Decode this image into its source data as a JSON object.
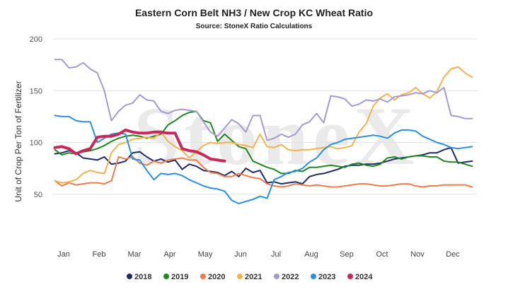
{
  "chart_data": {
    "type": "line",
    "title": "Eastern Corn Belt NH3 / New Crop KC Wheat Ratio",
    "subtitle": "Source: StoneX Ratio Calculations",
    "ylabel": "Unit of Crop Per Ton of Fertilizer",
    "xlabel": "",
    "watermark": "StoneX",
    "x_unit": "month",
    "x_range": [
      0,
      12
    ],
    "ylim": [
      0,
      200
    ],
    "y_ticks": [
      50,
      100,
      150,
      200
    ],
    "x_ticks": [
      {
        "label": "Jan",
        "x": 0.3
      },
      {
        "label": "Feb",
        "x": 1.3
      },
      {
        "label": "Mar",
        "x": 2.3
      },
      {
        "label": "Apr",
        "x": 3.3
      },
      {
        "label": "May",
        "x": 4.3
      },
      {
        "label": "Jun",
        "x": 5.3
      },
      {
        "label": "Jul",
        "x": 6.3
      },
      {
        "label": "Aug",
        "x": 7.3
      },
      {
        "label": "Sep",
        "x": 8.3
      },
      {
        "label": "Oct",
        "x": 9.3
      },
      {
        "label": "Nov",
        "x": 10.3
      },
      {
        "label": "Dec",
        "x": 11.3
      }
    ],
    "grid": "horizontal",
    "legend_position": "bottom",
    "series": [
      {
        "name": "2018",
        "color": "#1f2a6b",
        "width": 2,
        "x": [
          0.05,
          0.25,
          0.45,
          0.65,
          0.85,
          1.05,
          1.25,
          1.45,
          1.65,
          1.85,
          2.05,
          2.25,
          2.45,
          2.65,
          2.85,
          3.05,
          3.25,
          3.45,
          3.65,
          3.85,
          4.05,
          4.25,
          4.45,
          4.65,
          4.85,
          5.05,
          5.25,
          5.45,
          5.65,
          5.85,
          6.05,
          6.25,
          6.45,
          6.65,
          6.85,
          7.05,
          7.25,
          7.45,
          7.65,
          7.85,
          8.05,
          8.25,
          8.45,
          8.65,
          8.85,
          9.05,
          9.25,
          9.45,
          9.65,
          9.85,
          10.05,
          10.25,
          10.45,
          10.65,
          10.85,
          11.05,
          11.25,
          11.45,
          11.65,
          11.85
        ],
        "y": [
          89,
          90,
          92,
          90,
          85,
          84,
          83,
          86,
          79,
          80,
          82,
          90,
          91,
          86,
          82,
          84,
          81,
          83,
          74,
          79,
          77,
          73,
          72,
          71,
          68,
          72,
          67,
          75,
          71,
          73,
          61,
          62,
          60,
          61,
          62,
          60,
          67,
          69,
          70,
          72,
          74,
          77,
          78,
          78,
          79,
          79,
          80,
          82,
          84,
          85,
          86,
          87,
          88,
          90,
          90,
          93,
          95,
          80,
          81,
          82
        ]
      },
      {
        "name": "2019",
        "color": "#1e8a1e",
        "width": 2,
        "x": [
          0.05,
          0.25,
          0.45,
          0.65,
          0.85,
          1.05,
          1.25,
          1.45,
          1.65,
          1.85,
          2.05,
          2.25,
          2.45,
          2.65,
          2.85,
          3.05,
          3.25,
          3.45,
          3.65,
          3.85,
          4.05,
          4.25,
          4.45,
          4.65,
          4.85,
          5.05,
          5.25,
          5.45,
          5.65,
          5.85,
          6.05,
          6.25,
          6.45,
          6.65,
          6.85,
          7.05,
          7.25,
          7.45,
          7.65,
          7.85,
          8.05,
          8.25,
          8.45,
          8.65,
          8.85,
          9.05,
          9.25,
          9.45,
          9.65,
          9.85,
          10.05,
          10.25,
          10.45,
          10.65,
          10.85,
          11.05,
          11.25,
          11.45,
          11.65,
          11.85
        ],
        "y": [
          93,
          88,
          90,
          89,
          91,
          92,
          94,
          97,
          101,
          104,
          106,
          107,
          106,
          104,
          106,
          108,
          117,
          121,
          126,
          129,
          130,
          121,
          119,
          101,
          108,
          102,
          96,
          94,
          82,
          79,
          76,
          74,
          70,
          70,
          73,
          72,
          76,
          76,
          77,
          78,
          77,
          76,
          79,
          80,
          78,
          77,
          79,
          85,
          86,
          84,
          86,
          87,
          87,
          86,
          86,
          82,
          81,
          81,
          79,
          77
        ]
      },
      {
        "name": "2020",
        "color": "#f07c4a",
        "width": 2,
        "x": [
          0.05,
          0.25,
          0.45,
          0.65,
          0.85,
          1.05,
          1.25,
          1.45,
          1.65,
          1.85,
          2.05,
          2.25,
          2.45,
          2.65,
          2.85,
          3.05,
          3.25,
          3.45,
          3.65,
          3.85,
          4.05,
          4.25,
          4.45,
          4.65,
          4.85,
          5.05,
          5.25,
          5.45,
          5.65,
          5.85,
          6.05,
          6.25,
          6.45,
          6.65,
          6.85,
          7.05,
          7.25,
          7.45,
          7.65,
          7.85,
          8.05,
          8.25,
          8.45,
          8.65,
          8.85,
          9.05,
          9.25,
          9.45,
          9.65,
          9.85,
          10.05,
          10.25,
          10.45,
          10.65,
          10.85,
          11.05,
          11.25,
          11.45,
          11.65,
          11.85
        ],
        "y": [
          63,
          58,
          61,
          59,
          60,
          61,
          61,
          60,
          63,
          86,
          84,
          86,
          80,
          78,
          82,
          80,
          83,
          84,
          85,
          83,
          83,
          76,
          71,
          70,
          67,
          67,
          70,
          68,
          66,
          65,
          60,
          58,
          57,
          58,
          60,
          59,
          58,
          59,
          58,
          57,
          57,
          58,
          59,
          60,
          60,
          59,
          58,
          58,
          59,
          60,
          60,
          58,
          57,
          58,
          58,
          59,
          59,
          59,
          59,
          57
        ]
      },
      {
        "name": "2021",
        "color": "#f5b14c",
        "width": 2,
        "x": [
          0.05,
          0.25,
          0.45,
          0.65,
          0.85,
          1.05,
          1.25,
          1.45,
          1.65,
          1.85,
          2.05,
          2.25,
          2.45,
          2.65,
          2.85,
          3.05,
          3.25,
          3.45,
          3.65,
          3.85,
          4.05,
          4.25,
          4.45,
          4.65,
          4.85,
          5.05,
          5.25,
          5.45,
          5.65,
          5.85,
          6.05,
          6.25,
          6.45,
          6.65,
          6.85,
          7.05,
          7.25,
          7.45,
          7.65,
          7.85,
          8.05,
          8.25,
          8.45,
          8.65,
          8.85,
          9.05,
          9.25,
          9.45,
          9.65,
          9.85,
          10.05,
          10.25,
          10.45,
          10.65,
          10.85,
          11.05,
          11.25,
          11.45,
          11.65,
          11.85
        ],
        "y": [
          63,
          61,
          62,
          64,
          70,
          73,
          71,
          70,
          90,
          98,
          100,
          103,
          104,
          105,
          104,
          110,
          101,
          96,
          92,
          85,
          91,
          97,
          100,
          99,
          100,
          100,
          98,
          97,
          95,
          108,
          96,
          95,
          98,
          93,
          92,
          93,
          93,
          94,
          95,
          96,
          94,
          95,
          97,
          110,
          118,
          135,
          143,
          147,
          141,
          146,
          148,
          153,
          147,
          143,
          149,
          163,
          171,
          173,
          167,
          163
        ]
      },
      {
        "name": "2022",
        "color": "#a39bd1",
        "width": 2,
        "x": [
          0.05,
          0.25,
          0.45,
          0.65,
          0.85,
          1.05,
          1.25,
          1.45,
          1.65,
          1.85,
          2.05,
          2.25,
          2.45,
          2.65,
          2.85,
          3.05,
          3.25,
          3.45,
          3.65,
          3.85,
          4.05,
          4.25,
          4.45,
          4.65,
          4.85,
          5.05,
          5.25,
          5.45,
          5.65,
          5.85,
          6.05,
          6.25,
          6.45,
          6.65,
          6.85,
          7.05,
          7.25,
          7.45,
          7.65,
          7.85,
          8.05,
          8.25,
          8.45,
          8.65,
          8.85,
          9.05,
          9.25,
          9.45,
          9.65,
          9.85,
          10.05,
          10.25,
          10.45,
          10.65,
          10.85,
          11.05,
          11.25,
          11.45,
          11.65,
          11.85
        ],
        "y": [
          180,
          180,
          172,
          173,
          177,
          171,
          167,
          150,
          121,
          130,
          136,
          138,
          146,
          141,
          140,
          130,
          128,
          131,
          132,
          131,
          130,
          120,
          110,
          106,
          114,
          122,
          118,
          110,
          126,
          126,
          102,
          104,
          108,
          105,
          108,
          117,
          120,
          128,
          119,
          145,
          144,
          142,
          135,
          137,
          141,
          140,
          142,
          139,
          144,
          145,
          146,
          148,
          147,
          150,
          148,
          153,
          126,
          125,
          123,
          123
        ]
      },
      {
        "name": "2023",
        "color": "#2b8fe3",
        "width": 2,
        "x": [
          0.05,
          0.25,
          0.45,
          0.65,
          0.85,
          1.05,
          1.25,
          1.45,
          1.65,
          1.85,
          2.05,
          2.25,
          2.45,
          2.65,
          2.85,
          3.05,
          3.25,
          3.45,
          3.65,
          3.85,
          4.05,
          4.25,
          4.45,
          4.65,
          4.85,
          5.05,
          5.25,
          5.45,
          5.65,
          5.85,
          6.05,
          6.25,
          6.45,
          6.65,
          6.85,
          7.05,
          7.25,
          7.45,
          7.65,
          7.85,
          8.05,
          8.25,
          8.45,
          8.65,
          8.85,
          9.05,
          9.25,
          9.45,
          9.65,
          9.85,
          10.05,
          10.25,
          10.45,
          10.65,
          10.85,
          11.05,
          11.25,
          11.45,
          11.65,
          11.85
        ],
        "y": [
          126,
          125,
          125,
          121,
          120,
          120,
          100,
          104,
          108,
          109,
          108,
          84,
          83,
          73,
          64,
          70,
          69,
          70,
          68,
          64,
          61,
          58,
          56,
          55,
          53,
          44,
          41,
          43,
          45,
          48,
          46,
          64,
          67,
          71,
          72,
          75,
          81,
          85,
          93,
          98,
          100,
          103,
          104,
          105,
          106,
          107,
          106,
          104,
          109,
          112,
          112,
          111,
          106,
          103,
          100,
          98,
          95,
          94,
          95,
          96
        ]
      },
      {
        "name": "2024",
        "color": "#c8285a",
        "width": 4,
        "x": [
          0.05,
          0.25,
          0.45,
          0.65,
          0.85,
          1.05,
          1.25,
          1.45,
          1.65,
          1.85,
          2.05,
          2.25,
          2.45,
          2.65,
          2.85,
          3.05,
          3.25,
          3.45,
          3.65,
          3.85,
          4.05,
          4.25,
          4.45,
          4.65,
          4.85
        ],
        "y": [
          95,
          96,
          94,
          89,
          92,
          94,
          105,
          106,
          106,
          108,
          112,
          110,
          109,
          109,
          110,
          110,
          109,
          109,
          94,
          92,
          91,
          88,
          84,
          83,
          82
        ]
      }
    ]
  }
}
